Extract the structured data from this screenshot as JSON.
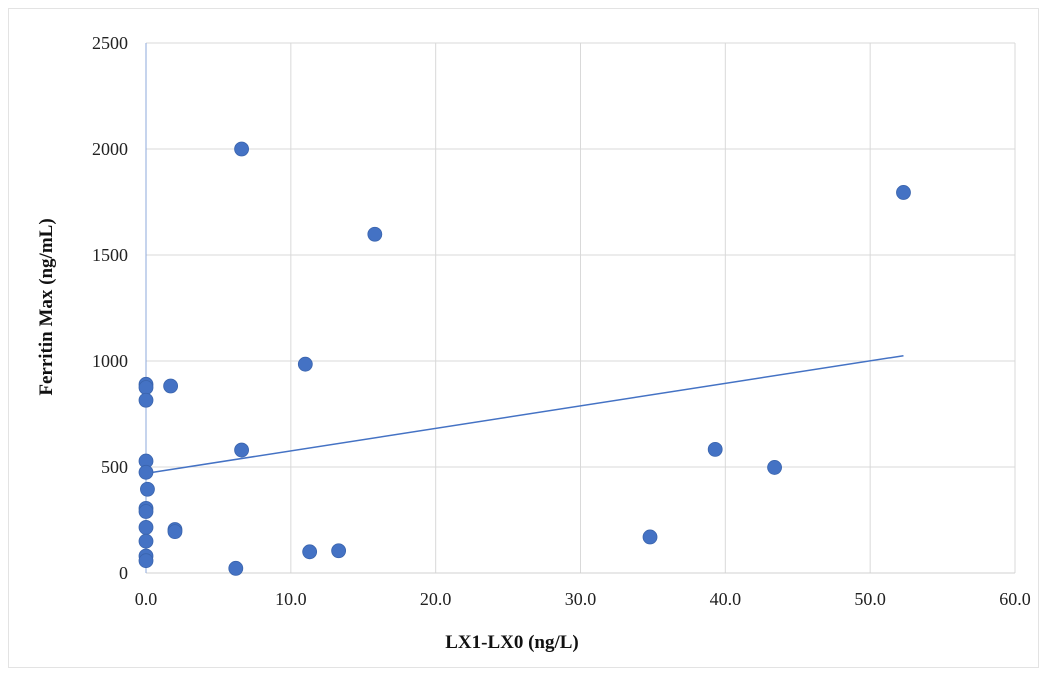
{
  "chart_data": {
    "type": "scatter",
    "title": "",
    "xlabel": "LX1-LX0 (ng/L)",
    "ylabel": "Ferritin Max (ng/mL)",
    "xlim": [
      0,
      60
    ],
    "ylim": [
      0,
      2500
    ],
    "xticks": [
      0,
      10,
      20,
      30,
      40,
      50,
      60
    ],
    "yticks": [
      0,
      500,
      1000,
      1500,
      2000,
      2500
    ],
    "xtick_labels": [
      "0.0",
      "10.0",
      "20.0",
      "30.0",
      "40.0",
      "50.0",
      "60.0"
    ],
    "ytick_labels": [
      "0",
      "500",
      "1000",
      "1500",
      "2000",
      "2500"
    ],
    "grid": true,
    "legend": "none",
    "marker_color": "#4472C4",
    "trendline_color": "#4472C4",
    "series": [
      {
        "points": [
          {
            "x": 0,
            "y": 890
          },
          {
            "x": 0,
            "y": 875
          },
          {
            "x": 0,
            "y": 815
          },
          {
            "x": 0,
            "y": 528
          },
          {
            "x": 0,
            "y": 475
          },
          {
            "x": 0.1,
            "y": 395
          },
          {
            "x": 0,
            "y": 305
          },
          {
            "x": 0,
            "y": 290
          },
          {
            "x": 0,
            "y": 215
          },
          {
            "x": 0,
            "y": 150
          },
          {
            "x": 0,
            "y": 80
          },
          {
            "x": 0,
            "y": 58
          },
          {
            "x": 1.7,
            "y": 882
          },
          {
            "x": 2.0,
            "y": 205
          },
          {
            "x": 2.0,
            "y": 195
          },
          {
            "x": 6.2,
            "y": 22
          },
          {
            "x": 6.6,
            "y": 2000
          },
          {
            "x": 6.6,
            "y": 580
          },
          {
            "x": 11.0,
            "y": 985
          },
          {
            "x": 11.3,
            "y": 100
          },
          {
            "x": 13.3,
            "y": 105
          },
          {
            "x": 15.8,
            "y": 1598
          },
          {
            "x": 34.8,
            "y": 170
          },
          {
            "x": 39.3,
            "y": 583
          },
          {
            "x": 43.4,
            "y": 498
          },
          {
            "x": 52.3,
            "y": 1795
          }
        ],
        "trendline": {
          "type": "linear",
          "x": [
            0,
            52.3
          ],
          "y": [
            470,
            1025
          ]
        }
      }
    ]
  }
}
